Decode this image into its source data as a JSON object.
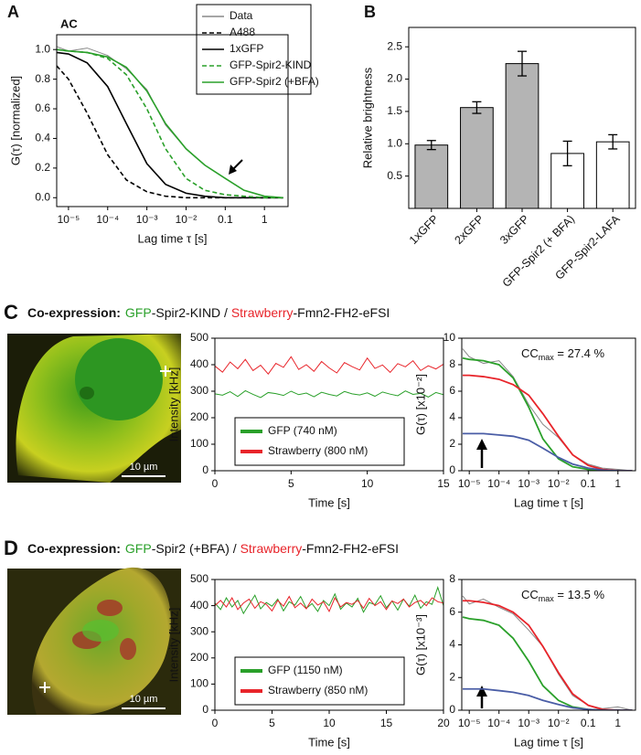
{
  "panel_labels": [
    "A",
    "B",
    "C",
    "D"
  ],
  "headings": [
    {
      "prefix": "Co-expression:",
      "parts": [
        {
          "text": "GFP",
          "color": "#2aa02a"
        },
        {
          "text": "-Spir2-KIND / ",
          "color": "#111111"
        },
        {
          "text": "Strawberry",
          "color": "#e8242a"
        },
        {
          "text": "-Fmn2-FH2-eFSI",
          "color": "#111111"
        }
      ]
    },
    {
      "prefix": "Co-expression:",
      "parts": [
        {
          "text": "GFP",
          "color": "#2aa02a"
        },
        {
          "text": "-Spir2 (+BFA) / ",
          "color": "#111111"
        },
        {
          "text": "Strawberry",
          "color": "#e8242a"
        },
        {
          "text": "-Fmn2-FH2-eFSI",
          "color": "#111111"
        }
      ]
    }
  ],
  "images": [
    {
      "scale_bar": "10 µm"
    },
    {
      "scale_bar": "10 µm"
    }
  ],
  "chart_data": [
    {
      "type": "line",
      "title": "AC",
      "xscale": "log",
      "x_label": "Lag time τ [s]",
      "y_label": "G(τ) [normalized]",
      "x": [
        5e-06,
        1e-05,
        3e-05,
        0.0001,
        0.0003,
        0.001,
        0.003,
        0.01,
        0.03,
        0.1,
        0.3,
        1,
        3
      ],
      "xlim": [
        5e-06,
        4
      ],
      "xticks": [
        {
          "value": 1e-05,
          "label": "10⁻⁵"
        },
        {
          "value": 0.0001,
          "label": "10⁻⁴"
        },
        {
          "value": 0.001,
          "label": "10⁻³"
        },
        {
          "value": 0.01,
          "label": "10⁻²"
        },
        0.1,
        1
      ],
      "ylim": [
        -0.06,
        1.1
      ],
      "yticks": [
        {
          "value": 0,
          "label": "0.0"
        },
        0.2,
        0.4,
        0.6,
        0.8,
        {
          "value": 1,
          "label": "1.0"
        }
      ],
      "legend": "upper right",
      "series": [
        {
          "name": "Data",
          "color": "#888888",
          "dash": false,
          "width": 1,
          "values": [
            1.02,
            0.99,
            1.01,
            0.96,
            0.87,
            0.73,
            0.49,
            0.33,
            0.22,
            0.13,
            0.05,
            0.01,
            0
          ]
        },
        {
          "name": "A488",
          "color": "#000000",
          "dash": true,
          "width": 1.6,
          "values": [
            0.89,
            0.8,
            0.57,
            0.29,
            0.12,
            0.04,
            0.01,
            0,
            0,
            0,
            0,
            0,
            0
          ]
        },
        {
          "name": "1xGFP",
          "color": "#000000",
          "dash": false,
          "width": 1.6,
          "values": [
            0.98,
            0.97,
            0.91,
            0.75,
            0.5,
            0.23,
            0.09,
            0.03,
            0.01,
            0,
            0,
            0,
            0
          ]
        },
        {
          "name": "GFP-Spir2-KIND",
          "color": "#2aa02a",
          "dash": true,
          "width": 1.6,
          "values": [
            1,
            0.99,
            0.98,
            0.94,
            0.83,
            0.6,
            0.33,
            0.13,
            0.05,
            0.02,
            0.01,
            0,
            0
          ]
        },
        {
          "name": "GFP-Spir2 (+BFA)",
          "color": "#2aa02a",
          "dash": false,
          "width": 1.6,
          "values": [
            1,
            0.99,
            0.98,
            0.95,
            0.88,
            0.72,
            0.5,
            0.33,
            0.22,
            0.13,
            0.05,
            0.01,
            0
          ]
        }
      ]
    },
    {
      "type": "bar",
      "y_label": "Relative brightness",
      "categories": [
        "1xGFP",
        "2xGFP",
        "3xGFP",
        "GFP-Spir2 (+ BFA)",
        "GFP-Spir2-LAFA"
      ],
      "values": [
        0.98,
        1.56,
        2.24,
        0.85,
        1.03
      ],
      "errors": [
        0.07,
        0.09,
        0.19,
        0.19,
        0.11
      ],
      "colors": [
        "#b4b4b4",
        "#b4b4b4",
        "#b4b4b4",
        "#ffffff",
        "#ffffff"
      ],
      "ylim": [
        0,
        2.8
      ],
      "yticks": [
        0.5,
        {
          "value": 1,
          "label": "1.0"
        },
        1.5,
        {
          "value": 2,
          "label": "2.0"
        },
        2.5
      ]
    },
    {
      "type": "line",
      "xscale": "linear",
      "x_label": "Time [s]",
      "y_label": "Intensity [kHz]",
      "x": [
        0,
        0.5,
        1,
        1.5,
        2,
        2.5,
        3,
        3.5,
        4,
        4.5,
        5,
        5.5,
        6,
        6.5,
        7,
        7.5,
        8,
        8.5,
        9,
        9.5,
        10,
        10.5,
        11,
        11.5,
        12,
        12.5,
        13,
        13.5,
        14,
        14.5,
        15
      ],
      "xlim": [
        0,
        15
      ],
      "xticks": [
        0,
        5,
        10,
        15
      ],
      "ylim": [
        0,
        500
      ],
      "yticks": [
        0,
        100,
        200,
        300,
        400,
        500
      ],
      "legend": "lower left",
      "series": [
        {
          "name": "GFP (740 nM)",
          "color": "#2aa02a",
          "dash": false,
          "width": 1,
          "values": [
            290,
            285,
            298,
            280,
            302,
            288,
            276,
            295,
            291,
            284,
            300,
            287,
            293,
            279,
            296,
            288,
            282,
            299,
            290,
            286,
            294,
            281,
            297,
            289,
            283,
            301,
            288,
            292,
            278,
            295,
            287
          ]
        },
        {
          "name": "Strawberry (800 nM)",
          "color": "#e8242a",
          "dash": false,
          "width": 1,
          "values": [
            395,
            372,
            410,
            385,
            420,
            378,
            398,
            365,
            405,
            390,
            430,
            382,
            400,
            375,
            412,
            388,
            369,
            408,
            393,
            380,
            425,
            386,
            399,
            371,
            404,
            392,
            415,
            378,
            396,
            384,
            402
          ]
        }
      ]
    },
    {
      "type": "line",
      "xscale": "log",
      "x_label": "Lag time τ [s]",
      "y_label": "G(τ) [x10⁻²]",
      "annotation": [
        "CC",
        "max",
        " = 27.4 %"
      ],
      "x": [
        6e-06,
        1e-05,
        3e-05,
        0.0001,
        0.0003,
        0.001,
        0.003,
        0.01,
        0.03,
        0.1,
        0.3,
        1,
        3
      ],
      "xlim": [
        5.6e-06,
        3.9
      ],
      "xticks": [
        {
          "value": 1e-05,
          "label": "10⁻⁵"
        },
        {
          "value": 0.0001,
          "label": "10⁻⁴"
        },
        {
          "value": 0.001,
          "label": "10⁻³"
        },
        {
          "value": 0.01,
          "label": "10⁻²"
        },
        0.1,
        1
      ],
      "ylim": [
        0,
        10
      ],
      "yticks": [
        0,
        2,
        4,
        6,
        8,
        10
      ],
      "series": [
        {
          "color": "#888888",
          "dash": false,
          "width": 1,
          "values": [
            9.2,
            8.6,
            8.1,
            8.3,
            7.1,
            5.0,
            3.5,
            2.5,
            1.2,
            0.5,
            0.2,
            0.1,
            0
          ]
        },
        {
          "color": "#2aa02a",
          "dash": false,
          "width": 1.8,
          "values": [
            8.5,
            8.4,
            8.3,
            8.0,
            7.0,
            4.8,
            2.4,
            0.9,
            0.3,
            0.1,
            0,
            0,
            0
          ]
        },
        {
          "color": "#e8242a",
          "dash": false,
          "width": 1.8,
          "values": [
            7.2,
            7.2,
            7.1,
            6.9,
            6.5,
            5.7,
            4.3,
            2.6,
            1.2,
            0.4,
            0.1,
            0,
            0
          ]
        },
        {
          "color": "#4a5da6",
          "dash": false,
          "width": 1.8,
          "values": [
            2.8,
            2.8,
            2.8,
            2.7,
            2.6,
            2.3,
            1.7,
            1.0,
            0.5,
            0.2,
            0.05,
            0,
            0
          ]
        }
      ]
    },
    {
      "type": "line",
      "xscale": "linear",
      "x_label": "Time [s]",
      "y_label": "Intensity [kHz]",
      "x": [
        0,
        0.5,
        1,
        1.5,
        2,
        2.5,
        3,
        3.5,
        4,
        4.5,
        5,
        5.5,
        6,
        6.5,
        7,
        7.5,
        8,
        8.5,
        9,
        9.5,
        10,
        10.5,
        11,
        11.5,
        12,
        12.5,
        13,
        13.5,
        14,
        14.5,
        15,
        15.5,
        16,
        16.5,
        17,
        17.5,
        18,
        18.5,
        19,
        19.5,
        20
      ],
      "xlim": [
        0,
        20
      ],
      "xticks": [
        0,
        5,
        10,
        15,
        20
      ],
      "ylim": [
        0,
        500
      ],
      "yticks": [
        0,
        100,
        200,
        300,
        400,
        500
      ],
      "legend": "lower left",
      "series": [
        {
          "name": "GFP (1150 nM)",
          "color": "#2aa02a",
          "dash": false,
          "width": 1,
          "values": [
            410,
            385,
            430,
            395,
            420,
            370,
            405,
            440,
            388,
            412,
            398,
            425,
            380,
            415,
            402,
            435,
            390,
            408,
            378,
            420,
            400,
            445,
            386,
            410,
            395,
            428,
            375,
            412,
            404,
            438,
            392,
            418,
            383,
            425,
            398,
            440,
            390,
            415,
            405,
            470,
            400
          ]
        },
        {
          "name": "Strawberry (850 nM)",
          "color": "#e8242a",
          "dash": false,
          "width": 1,
          "values": [
            400,
            420,
            395,
            430,
            385,
            410,
            425,
            390,
            415,
            405,
            380,
            420,
            398,
            435,
            392,
            410,
            388,
            425,
            402,
            415,
            378,
            430,
            395,
            412,
            405,
            420,
            390,
            428,
            400,
            415,
            385,
            418,
            408,
            425,
            395,
            412,
            420,
            400,
            430,
            415,
            410
          ]
        }
      ]
    },
    {
      "type": "line",
      "xscale": "log",
      "x_label": "Lag time τ [s]",
      "y_label": "G(τ) [x10⁻³]",
      "annotation": [
        "CC",
        "max",
        " = 13.5 %"
      ],
      "x": [
        6e-06,
        1e-05,
        3e-05,
        0.0001,
        0.0003,
        0.001,
        0.003,
        0.01,
        0.03,
        0.1,
        0.3,
        1,
        3
      ],
      "xlim": [
        5.6e-06,
        3.9
      ],
      "xticks": [
        {
          "value": 1e-05,
          "label": "10⁻⁵"
        },
        {
          "value": 0.0001,
          "label": "10⁻⁴"
        },
        {
          "value": 0.001,
          "label": "10⁻³"
        },
        {
          "value": 0.01,
          "label": "10⁻²"
        },
        0.1,
        1
      ],
      "ylim": [
        0,
        8
      ],
      "yticks": [
        0,
        2,
        4,
        6,
        8
      ],
      "series": [
        {
          "color": "#888888",
          "dash": false,
          "width": 1,
          "values": [
            7.0,
            6.5,
            6.8,
            6.3,
            5.9,
            4.9,
            3.9,
            2.2,
            0.9,
            0.3,
            0.1,
            0.2,
            0
          ]
        },
        {
          "color": "#2aa02a",
          "dash": false,
          "width": 1.8,
          "values": [
            5.7,
            5.6,
            5.5,
            5.2,
            4.4,
            3.0,
            1.5,
            0.6,
            0.2,
            0.05,
            0,
            0,
            0
          ]
        },
        {
          "color": "#e8242a",
          "dash": false,
          "width": 1.8,
          "values": [
            6.7,
            6.7,
            6.6,
            6.4,
            6.0,
            5.2,
            3.9,
            2.3,
            1.0,
            0.3,
            0.05,
            0,
            0
          ]
        },
        {
          "color": "#4a5da6",
          "dash": false,
          "width": 1.8,
          "values": [
            1.3,
            1.3,
            1.3,
            1.2,
            1.1,
            0.9,
            0.6,
            0.35,
            0.15,
            0.05,
            0,
            0,
            0
          ]
        }
      ]
    }
  ]
}
